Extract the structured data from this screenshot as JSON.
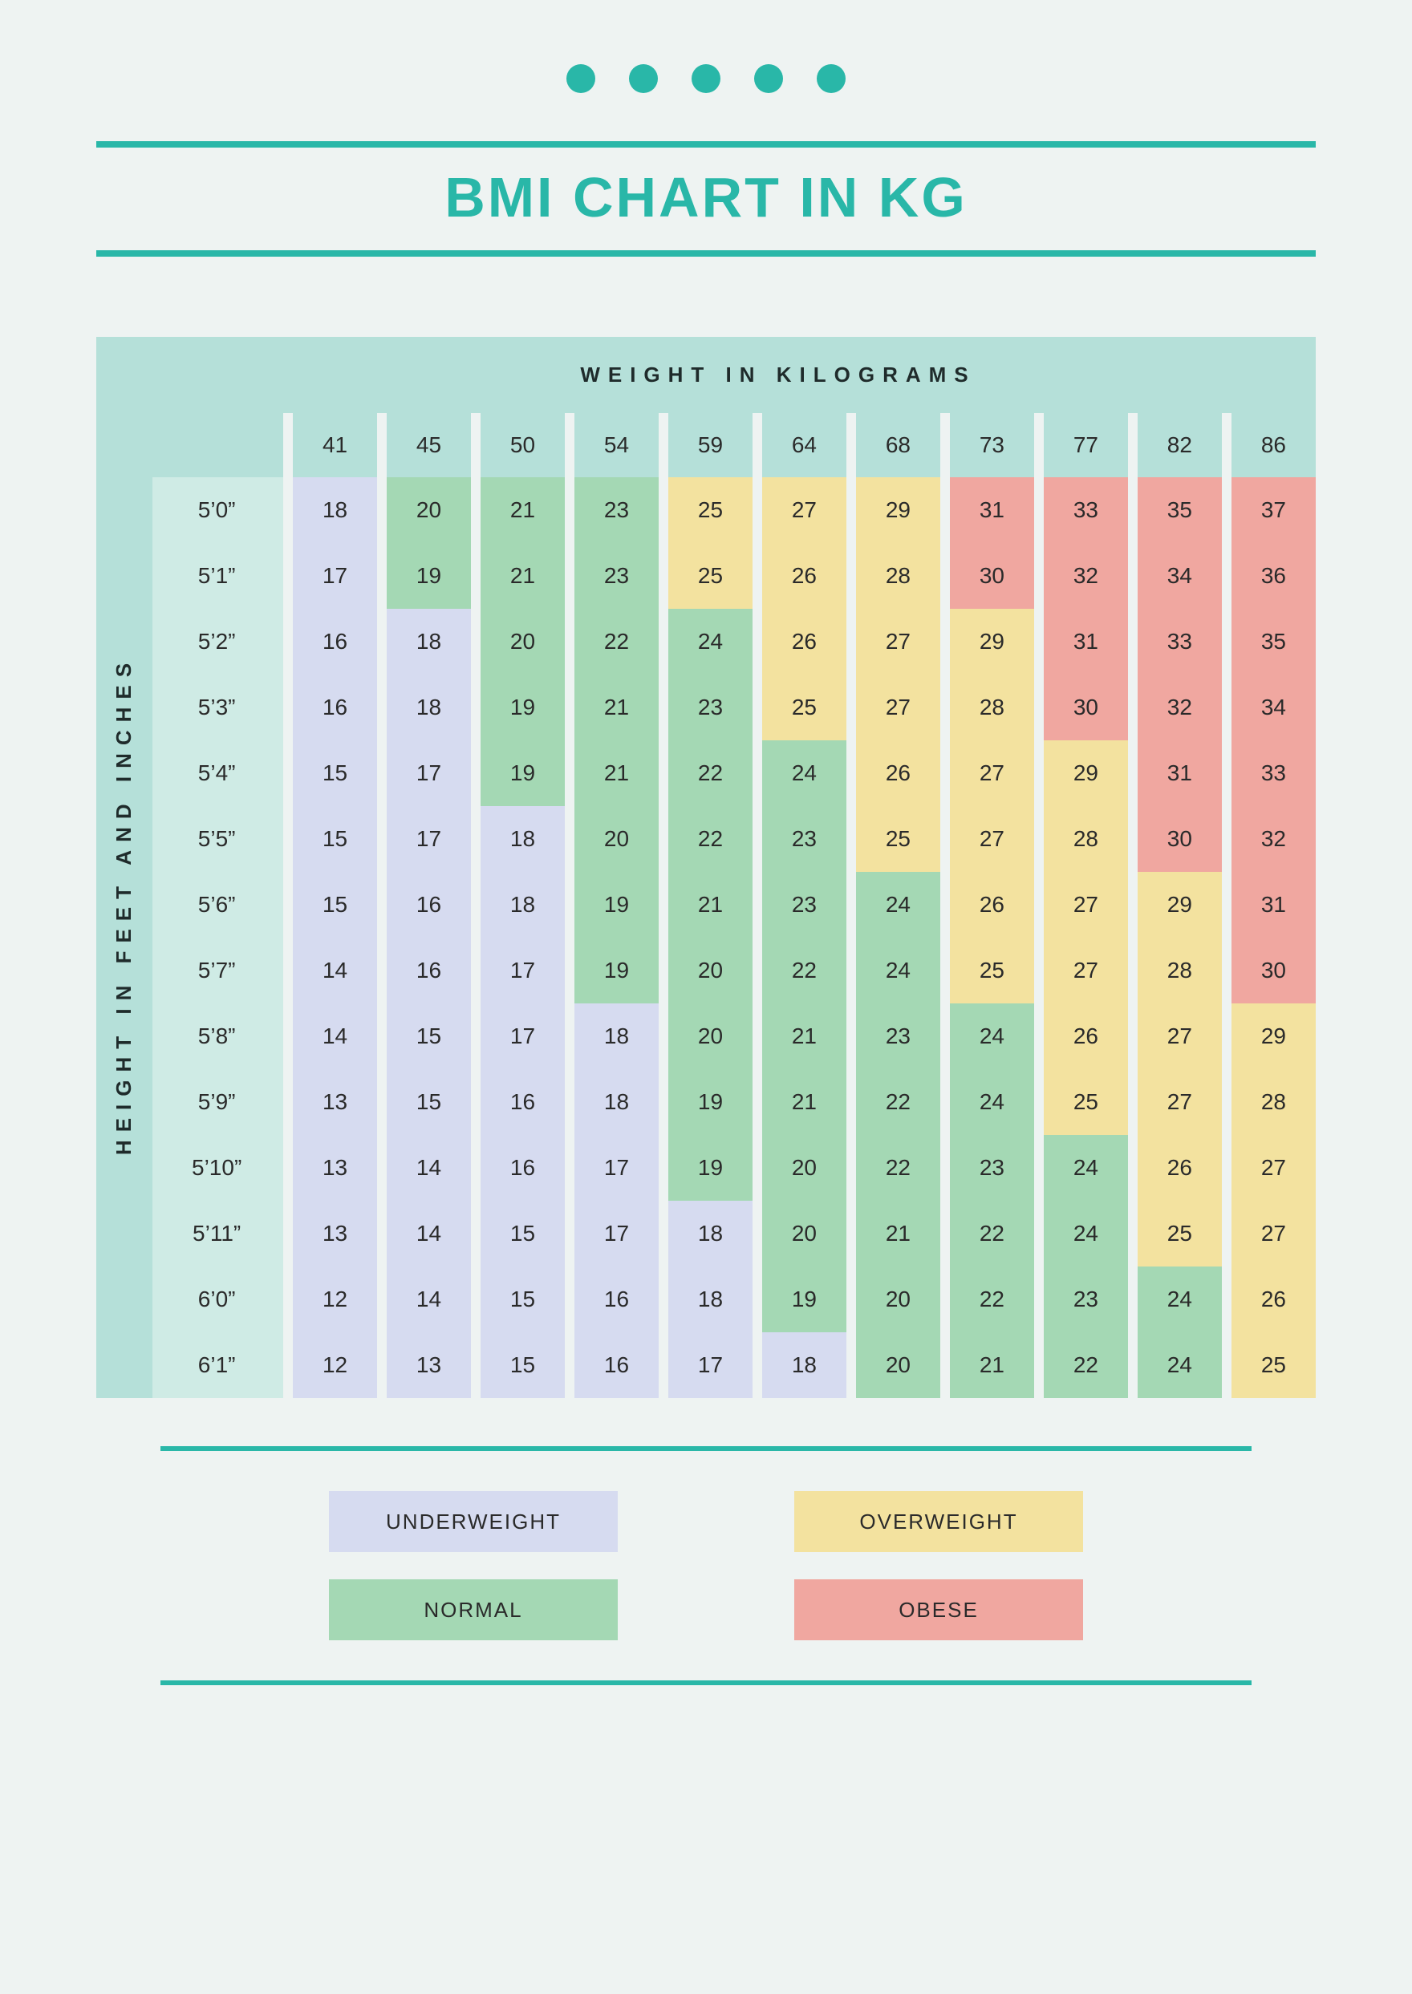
{
  "colors": {
    "accent": "#29b7a8",
    "background": "#eef3f2",
    "header_bg": "#b5e0d9",
    "row_label_bg": "#cfebe5",
    "title_color": "#29b7a8",
    "text_color": "#2a2a2a",
    "underweight": "#d6dbf0",
    "normal": "#a4d8b4",
    "overweight": "#f3e29f",
    "obese": "#f0a7a0",
    "dot": "#29b7a8"
  },
  "typography": {
    "title_fontsize": 70,
    "title_weight": 800,
    "axis_label_fontsize": 26,
    "axis_label_letter_spacing": 10,
    "cell_fontsize": 28,
    "legend_fontsize": 26
  },
  "decor": {
    "dot_count": 5,
    "dot_diameter": 36,
    "dot_gap": 42
  },
  "title": "BMI CHART IN KG",
  "axis": {
    "weight_label": "WEIGHT IN KILOGRAMS",
    "height_label": "HEIGHT IN FEET AND INCHES"
  },
  "weights": [
    41,
    45,
    50,
    54,
    59,
    64,
    68,
    73,
    77,
    82,
    86
  ],
  "heights": [
    "5’0”",
    "5’1”",
    "5’2”",
    "5’3”",
    "5’4”",
    "5’5”",
    "5’6”",
    "5’7”",
    "5’8”",
    "5’9”",
    "5’10”",
    "5’11”",
    "6’0”",
    "6’1”"
  ],
  "cells": [
    [
      18,
      20,
      21,
      23,
      25,
      27,
      29,
      31,
      33,
      35,
      37
    ],
    [
      17,
      19,
      21,
      23,
      25,
      26,
      28,
      30,
      32,
      34,
      36
    ],
    [
      16,
      18,
      20,
      22,
      24,
      26,
      27,
      29,
      31,
      33,
      35
    ],
    [
      16,
      18,
      19,
      21,
      23,
      25,
      27,
      28,
      30,
      32,
      34
    ],
    [
      15,
      17,
      19,
      21,
      22,
      24,
      26,
      27,
      29,
      31,
      33
    ],
    [
      15,
      17,
      18,
      20,
      22,
      23,
      25,
      27,
      28,
      30,
      32
    ],
    [
      15,
      16,
      18,
      19,
      21,
      23,
      24,
      26,
      27,
      29,
      31
    ],
    [
      14,
      16,
      17,
      19,
      20,
      22,
      24,
      25,
      27,
      28,
      30
    ],
    [
      14,
      15,
      17,
      18,
      20,
      21,
      23,
      24,
      26,
      27,
      29
    ],
    [
      13,
      15,
      16,
      18,
      19,
      21,
      22,
      24,
      25,
      27,
      28
    ],
    [
      13,
      14,
      16,
      17,
      19,
      20,
      22,
      23,
      24,
      26,
      27
    ],
    [
      13,
      14,
      15,
      17,
      18,
      20,
      21,
      22,
      24,
      25,
      27
    ],
    [
      12,
      14,
      15,
      16,
      18,
      19,
      20,
      22,
      23,
      24,
      26
    ],
    [
      12,
      13,
      15,
      16,
      17,
      18,
      20,
      21,
      22,
      24,
      25
    ]
  ],
  "categories": [
    [
      "u",
      "n",
      "n",
      "n",
      "o",
      "o",
      "o",
      "b",
      "b",
      "b",
      "b"
    ],
    [
      "u",
      "n",
      "n",
      "n",
      "o",
      "o",
      "o",
      "b",
      "b",
      "b",
      "b"
    ],
    [
      "u",
      "u",
      "n",
      "n",
      "n",
      "o",
      "o",
      "o",
      "b",
      "b",
      "b"
    ],
    [
      "u",
      "u",
      "n",
      "n",
      "n",
      "o",
      "o",
      "o",
      "b",
      "b",
      "b"
    ],
    [
      "u",
      "u",
      "n",
      "n",
      "n",
      "n",
      "o",
      "o",
      "o",
      "b",
      "b"
    ],
    [
      "u",
      "u",
      "u",
      "n",
      "n",
      "n",
      "o",
      "o",
      "o",
      "b",
      "b"
    ],
    [
      "u",
      "u",
      "u",
      "n",
      "n",
      "n",
      "n",
      "o",
      "o",
      "o",
      "b"
    ],
    [
      "u",
      "u",
      "u",
      "n",
      "n",
      "n",
      "n",
      "o",
      "o",
      "o",
      "b"
    ],
    [
      "u",
      "u",
      "u",
      "u",
      "n",
      "n",
      "n",
      "n",
      "o",
      "o",
      "o"
    ],
    [
      "u",
      "u",
      "u",
      "u",
      "n",
      "n",
      "n",
      "n",
      "o",
      "o",
      "o"
    ],
    [
      "u",
      "u",
      "u",
      "u",
      "n",
      "n",
      "n",
      "n",
      "n",
      "o",
      "o"
    ],
    [
      "u",
      "u",
      "u",
      "u",
      "u",
      "n",
      "n",
      "n",
      "n",
      "o",
      "o"
    ],
    [
      "u",
      "u",
      "u",
      "u",
      "u",
      "n",
      "n",
      "n",
      "n",
      "n",
      "o"
    ],
    [
      "u",
      "u",
      "u",
      "u",
      "u",
      "u",
      "n",
      "n",
      "n",
      "n",
      "o"
    ]
  ],
  "legend": {
    "underweight": "UNDERWEIGHT",
    "normal": "NORMAL",
    "overweight": "OVERWEIGHT",
    "obese": "OBESE"
  }
}
